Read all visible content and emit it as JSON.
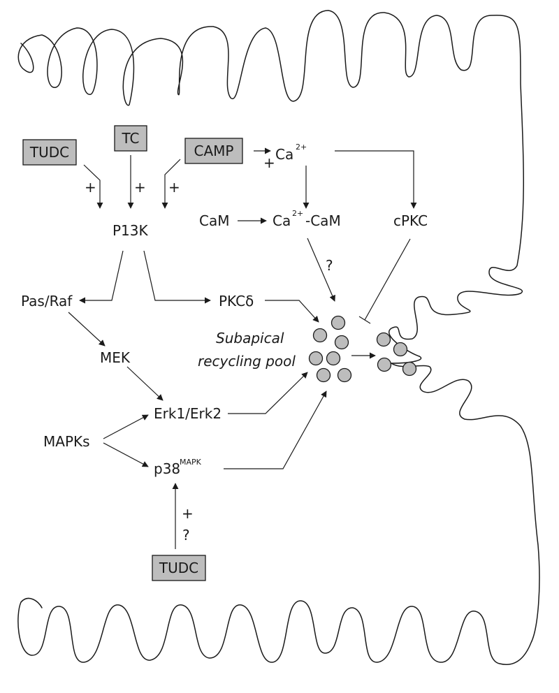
{
  "stimuli": {
    "tudc_top": "TUDC",
    "tc": "TC",
    "camp": "CAMP",
    "tudc_bottom": "TUDC"
  },
  "nodes": {
    "ca": "Ca",
    "ca_sup": "2+",
    "cam": "CaM",
    "ca_cam_prefix": "Ca",
    "ca_cam_sup": "2+",
    "ca_cam_suffix": "-CaM",
    "cpkc": "cPKC",
    "p13k": "P13K",
    "pas_raf": "Pas/Raf",
    "pkc_delta": "PKCδ",
    "mek": "MEK",
    "erk": "Erk1/Erk2",
    "mapks": "MAPKs",
    "p38": "p38",
    "p38_sup": "MAPK"
  },
  "signs": {
    "plus": "+",
    "question": "?"
  },
  "pool_label": {
    "line1": "Subapical",
    "line2": "recycling pool"
  }
}
